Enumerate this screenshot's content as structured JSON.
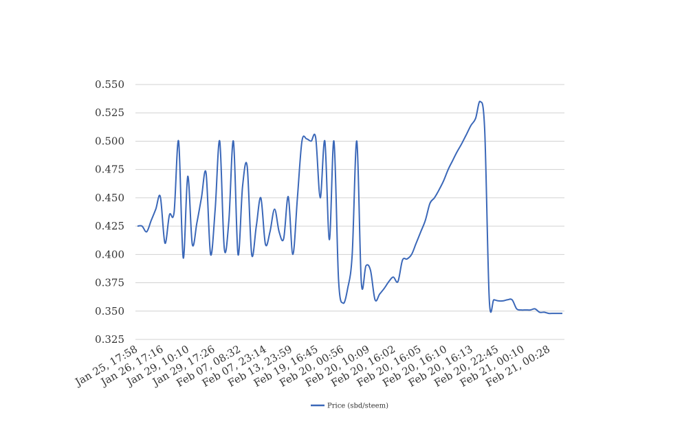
{
  "chart_data": {
    "type": "line",
    "title": "",
    "xlabel": "",
    "ylabel": "",
    "ylim": [
      0.325,
      0.55
    ],
    "y_ticks": [
      "0.550",
      "0.525",
      "0.500",
      "0.475",
      "0.450",
      "0.425",
      "0.400",
      "0.375",
      "0.350",
      "0.325"
    ],
    "x_tick_labels": [
      "Jan 25, 17:58",
      "Jan 26, 17:16",
      "Jan 29, 10:10",
      "Jan 29, 17:26",
      "Feb 07, 08:32",
      "Feb 07, 23:14",
      "Feb 13, 23:59",
      "Feb 19, 16:45",
      "Feb 20, 00:56",
      "Feb 20, 10:09",
      "Feb 20, 16:02",
      "Feb 20, 16:05",
      "Feb 20, 16:10",
      "Feb 20, 16:13",
      "Feb 20, 22:45",
      "Feb 21, 00:10",
      "Feb 21, 00:28"
    ],
    "grid": true,
    "legend_position": "bottom",
    "color": "#3a67b8",
    "series": [
      {
        "name": "Price (sbd/steem)",
        "values": [
          0.425,
          0.425,
          0.42,
          0.43,
          0.44,
          0.451,
          0.41,
          0.435,
          0.437,
          0.5,
          0.397,
          0.469,
          0.409,
          0.428,
          0.45,
          0.472,
          0.4,
          0.44,
          0.5,
          0.405,
          0.43,
          0.5,
          0.4,
          0.46,
          0.478,
          0.4,
          0.425,
          0.45,
          0.409,
          0.42,
          0.44,
          0.42,
          0.414,
          0.451,
          0.4,
          0.45,
          0.5,
          0.502,
          0.5,
          0.503,
          0.45,
          0.5,
          0.413,
          0.5,
          0.378,
          0.357,
          0.37,
          0.4,
          0.5,
          0.375,
          0.39,
          0.386,
          0.36,
          0.365,
          0.37,
          0.376,
          0.38,
          0.376,
          0.395,
          0.396,
          0.4,
          0.41,
          0.42,
          0.43,
          0.445,
          0.45,
          0.457,
          0.465,
          0.475,
          0.483,
          0.491,
          0.498,
          0.506,
          0.514,
          0.52,
          0.535,
          0.51,
          0.36,
          0.36,
          0.359,
          0.359,
          0.36,
          0.36,
          0.352,
          0.351,
          0.351,
          0.351,
          0.352,
          0.349,
          0.349,
          0.348,
          0.348,
          0.348,
          0.348
        ]
      }
    ]
  }
}
